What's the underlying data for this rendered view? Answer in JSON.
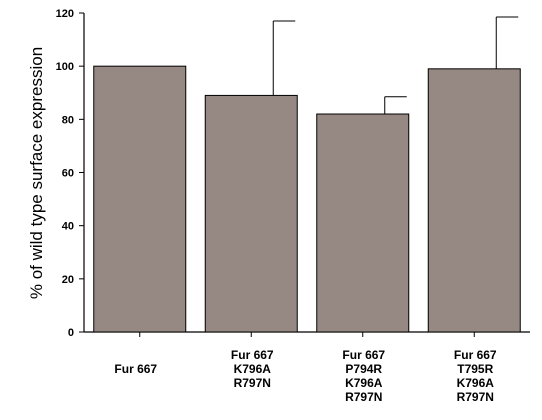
{
  "chart_data": {
    "type": "bar",
    "title": "",
    "xlabel": "",
    "ylabel": "% of wild type surface expression",
    "ylim": [
      0,
      120
    ],
    "yticks": [
      0,
      20,
      40,
      60,
      80,
      100,
      120
    ],
    "grid": false,
    "legend": "none",
    "bar_color": "#968882",
    "categories": [
      [
        "Fur 667"
      ],
      [
        "Fur 667",
        "K796A",
        "R797N"
      ],
      [
        "Fur 667",
        "P794R",
        "K796A",
        "R797N"
      ],
      [
        "Fur 667",
        "T795R",
        "K796A",
        "R797N"
      ]
    ],
    "values": [
      100,
      89,
      82,
      99
    ],
    "error_upper": [
      0,
      28,
      6.5,
      19.5
    ]
  }
}
